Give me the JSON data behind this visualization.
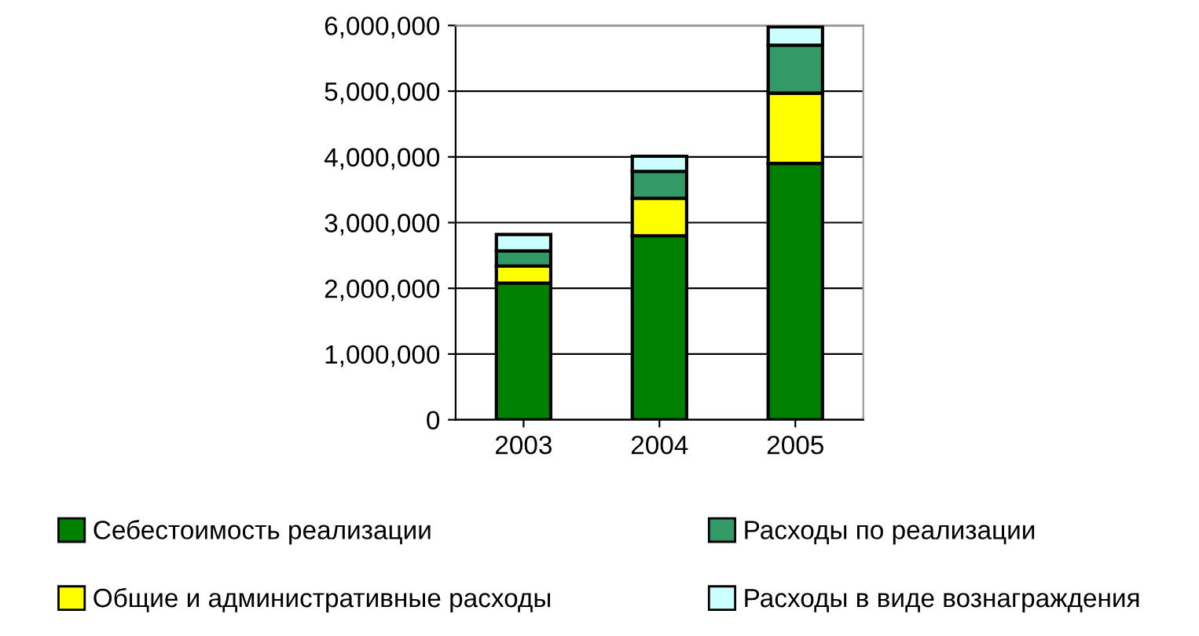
{
  "chart_data": {
    "type": "bar",
    "stacked": true,
    "categories": [
      "2003",
      "2004",
      "2005"
    ],
    "series": [
      {
        "name": "Себестоимость реализации",
        "color": "#008000",
        "values": [
          2080000,
          2800000,
          3900000
        ]
      },
      {
        "name": "Общие и административные расходы",
        "color": "#ffff00",
        "values": [
          260000,
          570000,
          1070000
        ]
      },
      {
        "name": "Расходы по реализации",
        "color": "#339966",
        "values": [
          230000,
          410000,
          730000
        ]
      },
      {
        "name": "Расходы в виде вознаграждения",
        "color": "#ccffff",
        "values": [
          250000,
          230000,
          280000
        ]
      }
    ],
    "ylim": [
      0,
      6000000
    ],
    "yticks": [
      {
        "value": 0,
        "label": "0"
      },
      {
        "value": 1000000,
        "label": "1,000,000"
      },
      {
        "value": 2000000,
        "label": "2,000,000"
      },
      {
        "value": 3000000,
        "label": "3,000,000"
      },
      {
        "value": 4000000,
        "label": "4,000,000"
      },
      {
        "value": 5000000,
        "label": "5,000,000"
      },
      {
        "value": 6000000,
        "label": "6,000,000"
      }
    ],
    "grid": "y",
    "legend": "bottom"
  }
}
